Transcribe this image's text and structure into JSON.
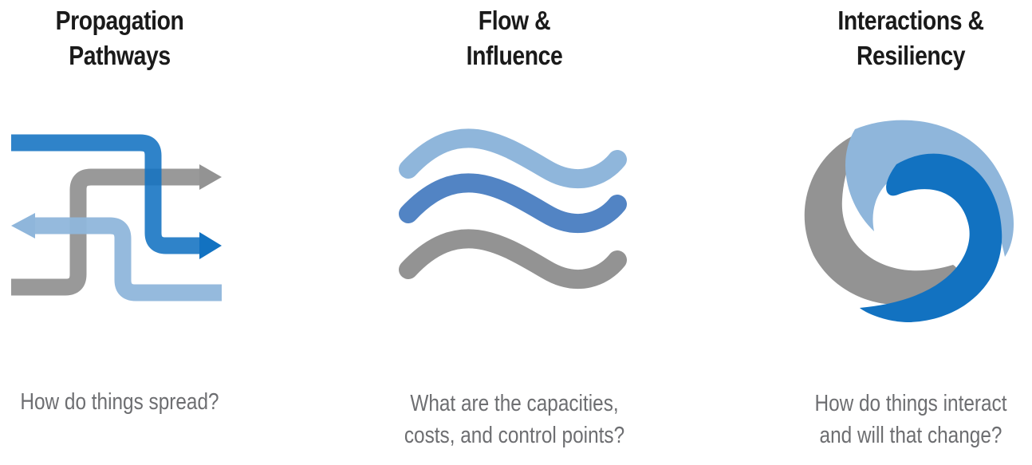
{
  "colors": {
    "dark_blue": "#1272c1",
    "light_blue": "#8fb6db",
    "mid_blue": "#5284c4",
    "gray": "#939393",
    "title_text": "#1a1a1a",
    "question_text": "#6d6e71"
  },
  "panels": [
    {
      "title_line1": "Propagation",
      "title_line2": "Pathways",
      "icon": "crossing-arrows-icon",
      "question_line1": "How do things spread?",
      "question_line2": ""
    },
    {
      "title_line1": "Flow &",
      "title_line2": "Influence",
      "icon": "waves-icon",
      "question_line1": "What are the capacities,",
      "question_line2": "costs, and control points?"
    },
    {
      "title_line1": "Interactions &",
      "title_line2": "Resiliency",
      "icon": "swirl-icon",
      "question_line1": "How do things interact",
      "question_line2": "and will that change?"
    }
  ]
}
